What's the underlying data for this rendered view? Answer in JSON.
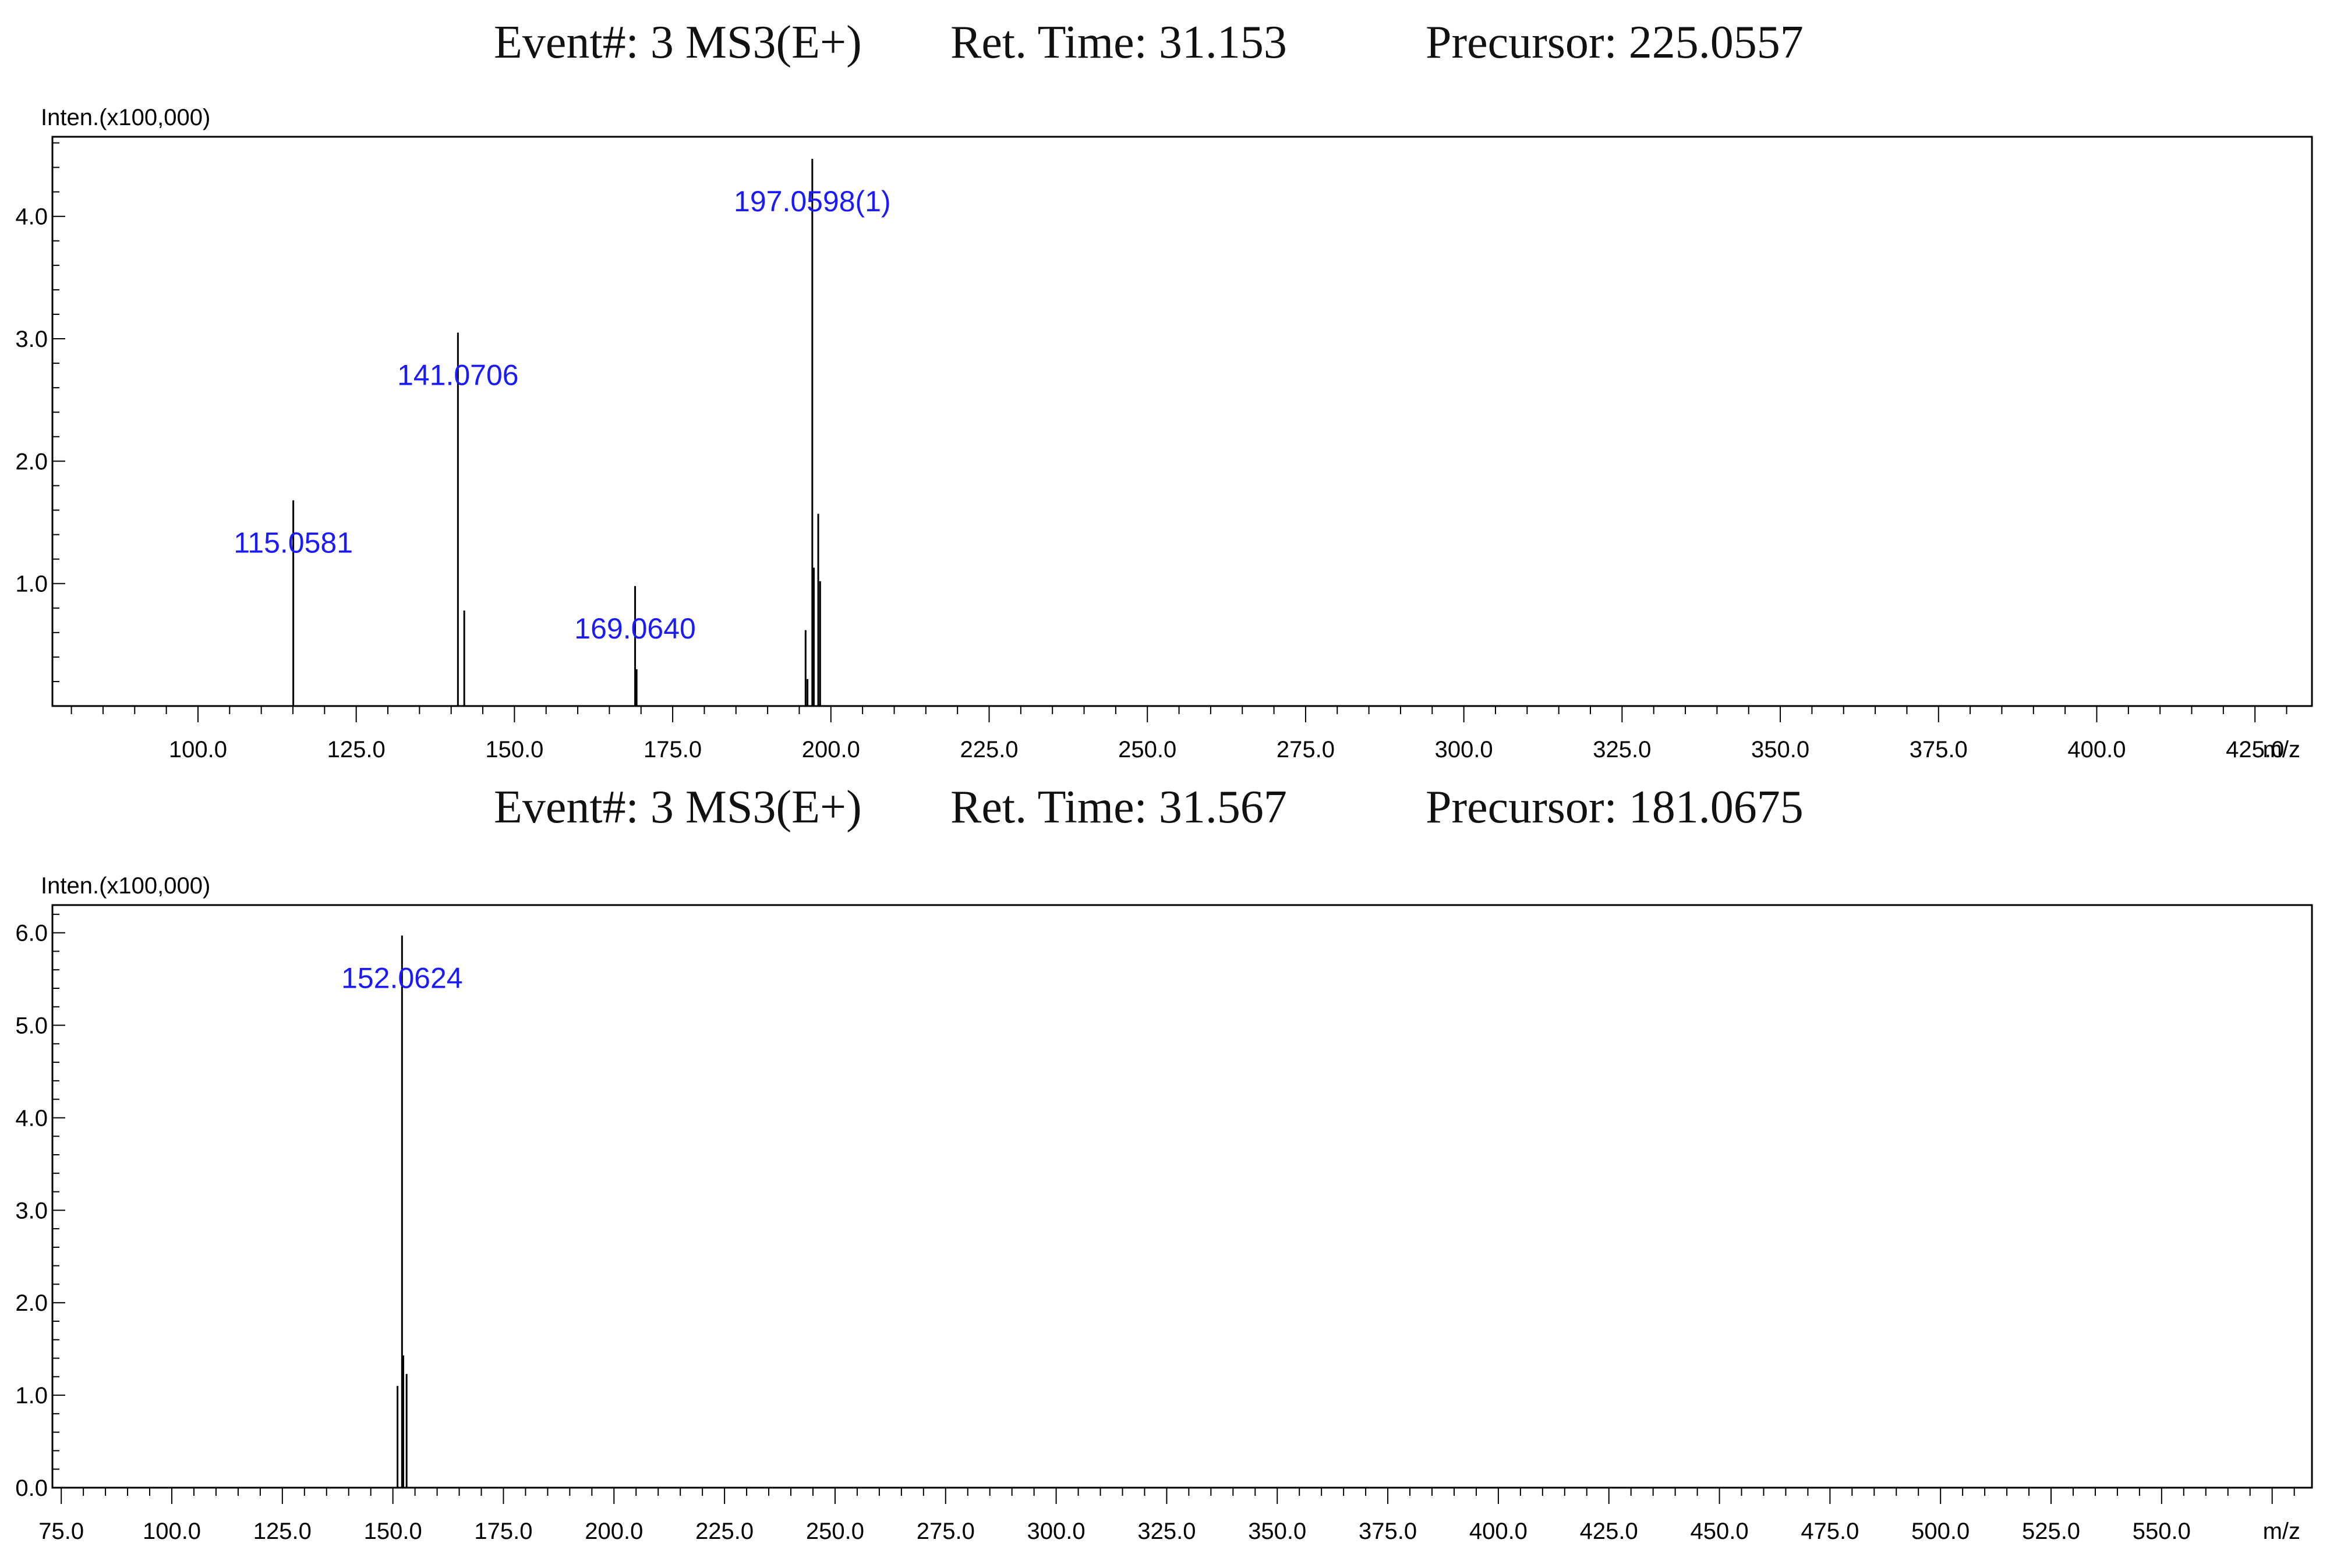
{
  "panels": [
    {
      "event": "Event#: 3 MS3(E+)",
      "ret_time": "Ret. Time: 31.153",
      "precursor": "Precursor: 225.0557"
    },
    {
      "event": "Event#: 3 MS3(E+)",
      "ret_time": "Ret. Time: 31.567",
      "precursor": "Precursor: 181.0675"
    }
  ],
  "chart_data": [
    {
      "type": "bar",
      "title": "Event#: 3 MS3(E+)  Ret. Time: 31.153  Precursor: 225.0557",
      "ylabel": "Inten.(x100,000)",
      "xlabel": "m/z",
      "xlim": [
        77,
        434
      ],
      "ylim": [
        0,
        4.65
      ],
      "x_ticks": [
        "100.0",
        "125.0",
        "150.0",
        "175.0",
        "200.0",
        "225.0",
        "250.0",
        "275.0",
        "300.0",
        "325.0",
        "350.0",
        "375.0",
        "400.0",
        "425.0"
      ],
      "x_tick_values": [
        100,
        125,
        150,
        175,
        200,
        225,
        250,
        275,
        300,
        325,
        350,
        375,
        400,
        425
      ],
      "y_ticks": [
        "1.0",
        "2.0",
        "3.0",
        "4.0"
      ],
      "y_tick_values": [
        1,
        2,
        3,
        4
      ],
      "peaks": [
        {
          "mz": 115.0581,
          "intensity": 1.68,
          "label": "115.0581"
        },
        {
          "mz": 141.0706,
          "intensity": 3.05,
          "label": "141.0706"
        },
        {
          "mz": 142.07,
          "intensity": 0.78
        },
        {
          "mz": 169.064,
          "intensity": 0.98,
          "label": "169.0640"
        },
        {
          "mz": 169.3,
          "intensity": 0.3
        },
        {
          "mz": 196.0,
          "intensity": 0.62
        },
        {
          "mz": 196.3,
          "intensity": 0.22
        },
        {
          "mz": 197.0598,
          "intensity": 4.47,
          "label": "197.0598(1)"
        },
        {
          "mz": 197.3,
          "intensity": 1.13
        },
        {
          "mz": 198.0,
          "intensity": 1.57
        },
        {
          "mz": 198.3,
          "intensity": 1.02
        }
      ]
    },
    {
      "type": "bar",
      "title": "Event#: 3 MS3(E+)  Ret. Time: 31.567  Precursor: 181.0675",
      "ylabel": "Inten.(x100,000)",
      "xlabel": "m/z",
      "xlim": [
        73,
        584
      ],
      "ylim": [
        0,
        6.3
      ],
      "x_ticks": [
        "75.0",
        "100.0",
        "125.0",
        "150.0",
        "175.0",
        "200.0",
        "225.0",
        "250.0",
        "275.0",
        "300.0",
        "325.0",
        "350.0",
        "375.0",
        "400.0",
        "425.0",
        "450.0",
        "475.0",
        "500.0",
        "525.0",
        "550.0"
      ],
      "x_tick_values": [
        75,
        100,
        125,
        150,
        175,
        200,
        225,
        250,
        275,
        300,
        325,
        350,
        375,
        400,
        425,
        450,
        475,
        500,
        525,
        550
      ],
      "y_ticks": [
        "0.0",
        "1.0",
        "2.0",
        "3.0",
        "4.0",
        "5.0",
        "6.0"
      ],
      "y_tick_values": [
        0,
        1,
        2,
        3,
        4,
        5,
        6
      ],
      "peaks": [
        {
          "mz": 151.05,
          "intensity": 1.1
        },
        {
          "mz": 152.0624,
          "intensity": 5.97,
          "label": "152.0624"
        },
        {
          "mz": 152.35,
          "intensity": 1.43
        },
        {
          "mz": 153.1,
          "intensity": 1.23
        }
      ]
    }
  ],
  "colors": {
    "peak": "#000000",
    "label": "#1a1aff",
    "axis": "#000000"
  }
}
